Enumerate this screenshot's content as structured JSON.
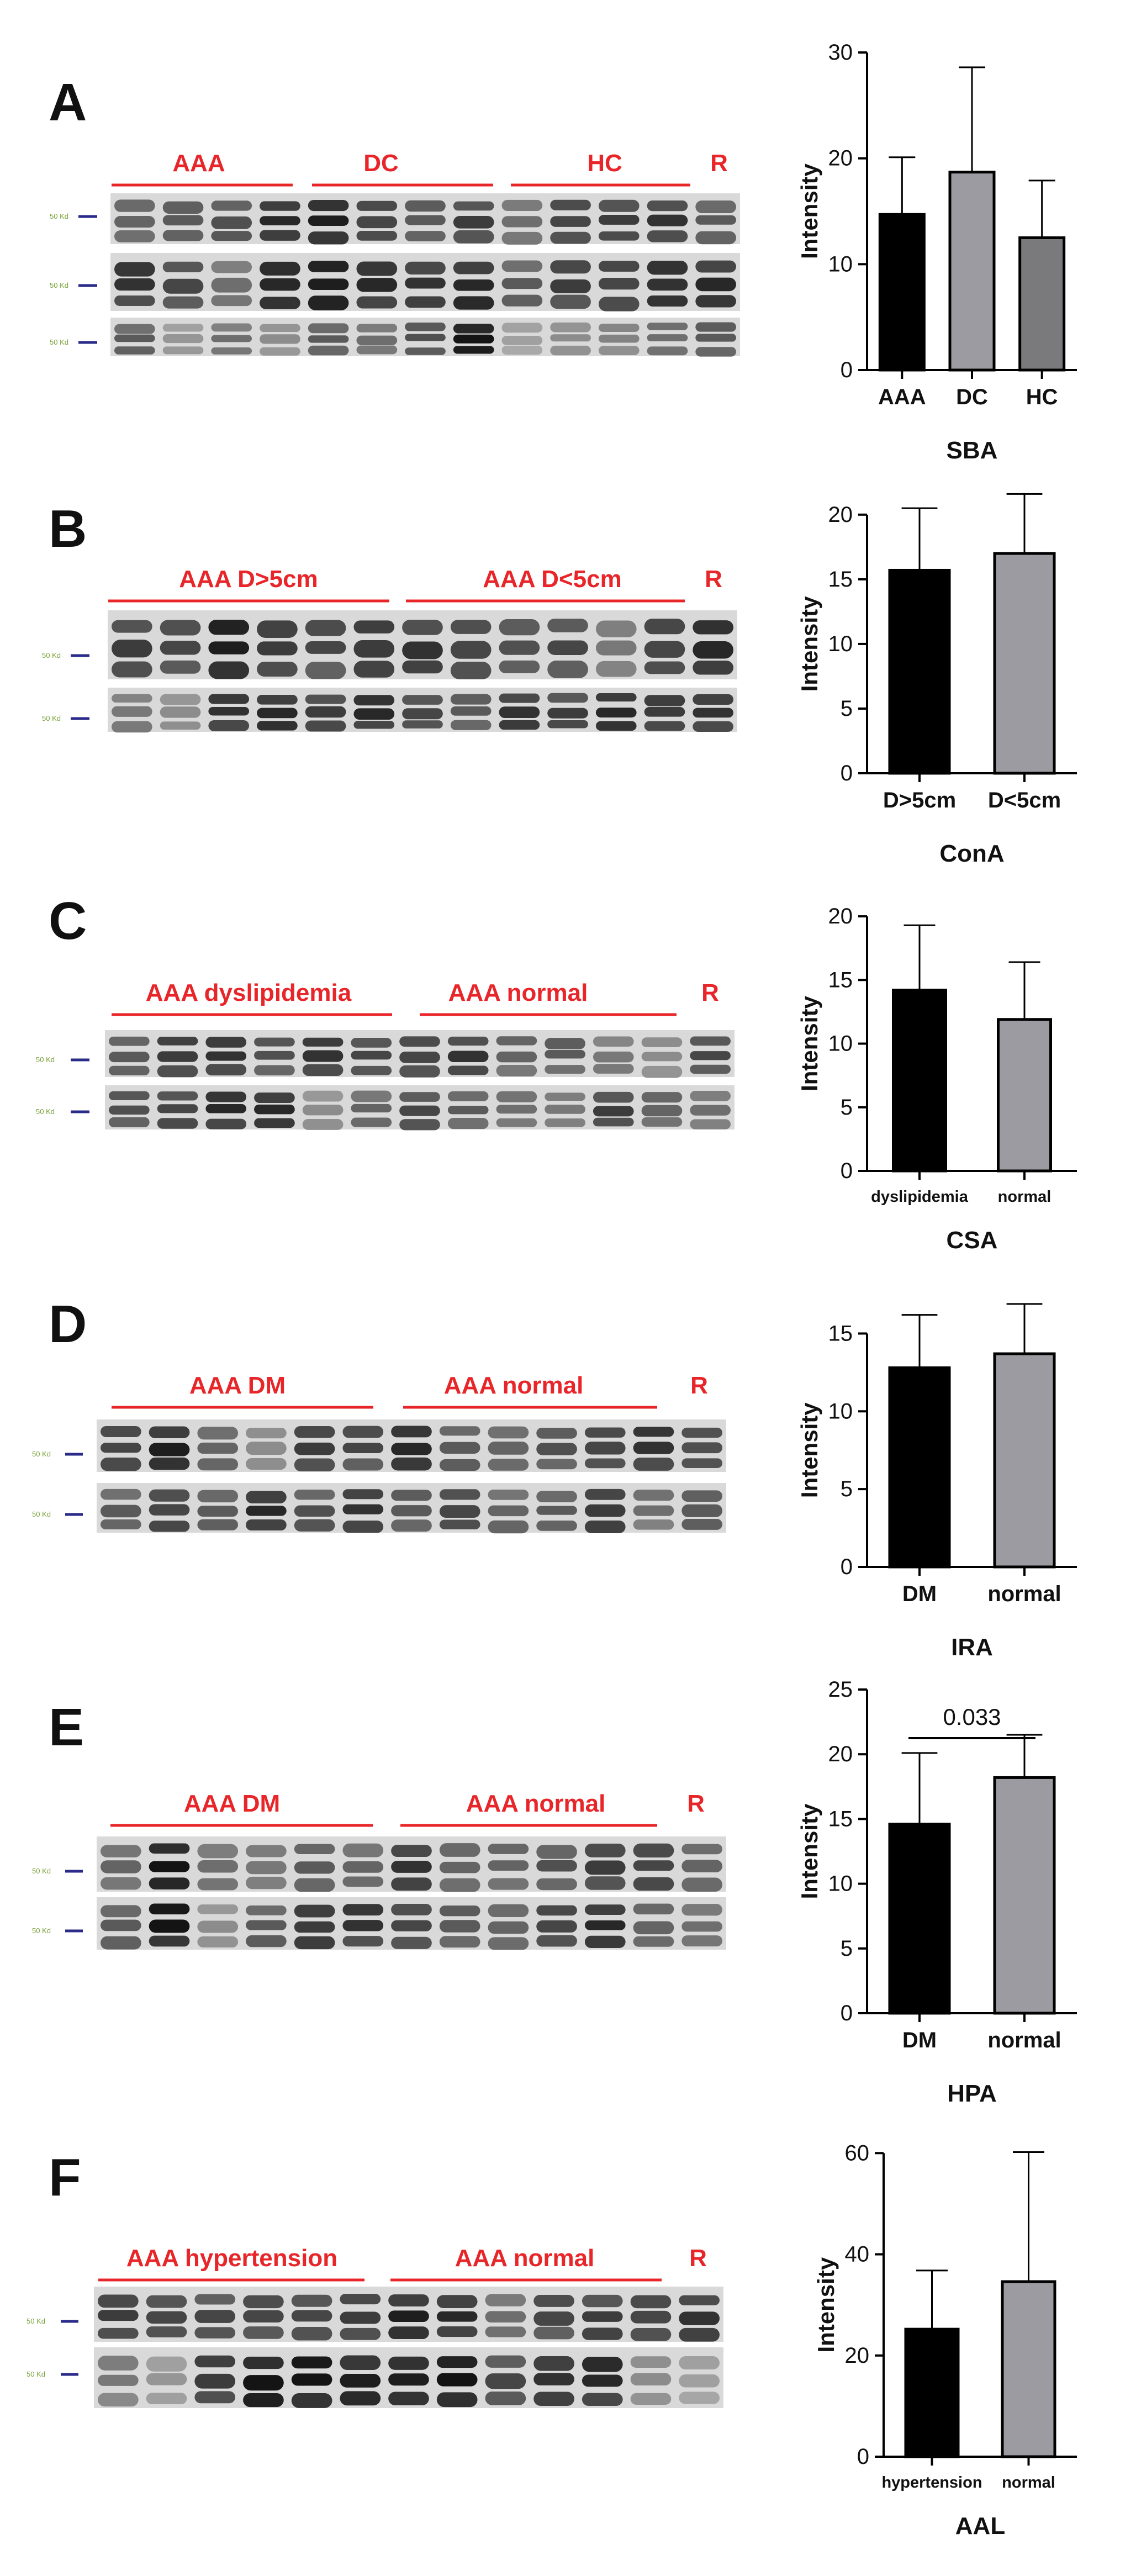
{
  "colors": {
    "accent_red": "#e8262a",
    "ladder_tick": "#2b2b8a",
    "ladder_text": "#7aa23a",
    "bar_black": "#000000",
    "bar_gray": "#9b9ba1",
    "bar_darkgray": "#7a7a7d"
  },
  "panels": [
    {
      "id": "A",
      "letter": "A",
      "groups": [
        "AAA",
        "DC",
        "HC",
        "R"
      ],
      "ladder_labels": [
        "50 Kd",
        "50 Kd",
        "50 Kd"
      ],
      "chart_data": {
        "type": "bar",
        "title": "SBA",
        "ylabel": "Intensity",
        "xlabel": "SBA",
        "categories": [
          "AAA",
          "DC",
          "HC"
        ],
        "values": [
          14.7,
          18.7,
          12.5
        ],
        "errors": [
          5.4,
          9.9,
          5.4
        ],
        "ylim": [
          0,
          30
        ],
        "yticks": [
          0,
          10,
          20,
          30
        ],
        "bar_colors": [
          "#000000",
          "#9b9ba1",
          "#7a7a7d"
        ]
      }
    },
    {
      "id": "B",
      "letter": "B",
      "groups": [
        "AAA D>5cm",
        "AAA D<5cm",
        "R"
      ],
      "ladder_labels": [
        "50 Kd",
        "50 Kd"
      ],
      "chart_data": {
        "type": "bar",
        "title": "ConA",
        "ylabel": "Intensity",
        "xlabel": "ConA",
        "categories": [
          "D>5cm",
          "D<5cm"
        ],
        "values": [
          15.7,
          17.0
        ],
        "errors": [
          4.8,
          4.6
        ],
        "ylim": [
          0,
          22
        ],
        "yticks": [
          0,
          5,
          10,
          15,
          20
        ],
        "bar_colors": [
          "#000000",
          "#9b9ba1"
        ]
      }
    },
    {
      "id": "C",
      "letter": "C",
      "groups": [
        "AAA dyslipidemia",
        "AAA normal",
        "R"
      ],
      "ladder_labels": [
        "50 Kd",
        "50 Kd"
      ],
      "chart_data": {
        "type": "bar",
        "title": "CSA",
        "ylabel": "Intensity",
        "xlabel": "CSA",
        "categories": [
          "dyslipidemia",
          "normal"
        ],
        "values": [
          14.2,
          11.9
        ],
        "errors": [
          5.1,
          4.5
        ],
        "ylim": [
          0,
          22
        ],
        "yticks": [
          0,
          5,
          10,
          15,
          20
        ],
        "bar_colors": [
          "#000000",
          "#9b9ba1"
        ]
      }
    },
    {
      "id": "D",
      "letter": "D",
      "groups": [
        "AAA DM",
        "AAA normal",
        "R"
      ],
      "ladder_labels": [
        "50 Kd",
        "50 Kd"
      ],
      "chart_data": {
        "type": "bar",
        "title": "IRA",
        "ylabel": "Intensity",
        "xlabel": "IRA",
        "categories": [
          "DM",
          "normal"
        ],
        "values": [
          12.8,
          13.7
        ],
        "errors": [
          3.4,
          3.2
        ],
        "ylim": [
          0,
          17.5
        ],
        "yticks": [
          0,
          5,
          10,
          15
        ],
        "bar_colors": [
          "#000000",
          "#9b9ba1"
        ]
      }
    },
    {
      "id": "E",
      "letter": "E",
      "groups": [
        "AAA DM",
        "AAA normal",
        "R"
      ],
      "ladder_labels": [
        "50 Kd",
        "50 Kd"
      ],
      "chart_data": {
        "type": "bar",
        "title": "HPA",
        "ylabel": "Intensity",
        "xlabel": "HPA",
        "categories": [
          "DM",
          "normal"
        ],
        "values": [
          14.6,
          18.2
        ],
        "errors": [
          5.5,
          3.3
        ],
        "ylim": [
          0,
          25
        ],
        "yticks": [
          0,
          5,
          10,
          15,
          20,
          25
        ],
        "bar_colors": [
          "#000000",
          "#9b9ba1"
        ],
        "annotation": "0.033"
      }
    },
    {
      "id": "F",
      "letter": "F",
      "groups": [
        "AAA hypertension",
        "AAA normal",
        "R"
      ],
      "ladder_labels": [
        "50 Kd",
        "50 Kd"
      ],
      "chart_data": {
        "type": "bar",
        "title": "AAL",
        "ylabel": "Intensity",
        "xlabel": "AAL",
        "categories": [
          "hypertension",
          "normal"
        ],
        "values": [
          25.2,
          34.6
        ],
        "errors": [
          11.6,
          25.6
        ],
        "ylim": [
          0,
          62
        ],
        "yticks": [
          0,
          20,
          40,
          60
        ],
        "bar_colors": [
          "#000000",
          "#9b9ba1"
        ]
      }
    }
  ]
}
